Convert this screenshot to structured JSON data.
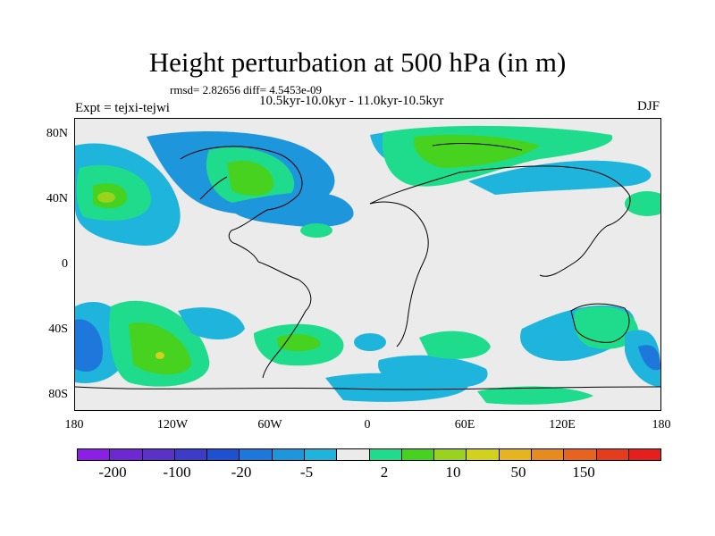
{
  "title": "Height perturbation at 500 hPa (in m)",
  "stats": "rmsd= 2.82656 diff= 4.5453e-09",
  "period": "10.5kyr-10.0kyr - 11.0kyr-10.5kyr",
  "experiment": "Expt = tejxi-tejwi",
  "season": "DJF",
  "map": {
    "projection": "cylindrical equidistant",
    "lon_range": [
      -180,
      180
    ],
    "lat_range": [
      -90,
      90
    ],
    "background_color": "#ebebeb",
    "lat_ticks": [
      "80N",
      "40N",
      "0",
      "40S",
      "80S"
    ],
    "lon_ticks": [
      "180",
      "120W",
      "60W",
      "0",
      "60E",
      "120E",
      "180"
    ],
    "features": [
      {
        "name": "north-pacific-positive",
        "level": "2 to 10",
        "lon": -170,
        "lat": 40
      },
      {
        "name": "north-america-positive",
        "level": "10 to 20",
        "lon": -75,
        "lat": 55
      },
      {
        "name": "north-atlantic-negative",
        "level": "-5 to -2",
        "lon": -40,
        "lat": 45
      },
      {
        "name": "eurasia-arctic-positive",
        "level": "2 to 10",
        "lon": 50,
        "lat": 65
      },
      {
        "name": "southeast-pacific-positive",
        "level": "2 to 10",
        "lon": -125,
        "lat": -55
      },
      {
        "name": "south-atlantic-positive",
        "level": "2 to 10",
        "lon": -45,
        "lat": -45
      },
      {
        "name": "southern-indian-positive",
        "level": "2 to 10",
        "lon": 50,
        "lat": -45
      },
      {
        "name": "australia-positive",
        "level": "2 to 10",
        "lon": 145,
        "lat": -35
      },
      {
        "name": "southwest-pacific-negative",
        "level": "-20 to -5",
        "lon": -175,
        "lat": -50
      }
    ]
  },
  "colorbar": {
    "colors": [
      "#8c1ee6",
      "#6e28d2",
      "#5a32c8",
      "#3c3cc8",
      "#1e50d2",
      "#1e78dc",
      "#1e96dc",
      "#1eb4dc",
      "#ebebeb",
      "#1edc8c",
      "#46d21e",
      "#9bd21e",
      "#d2d21e",
      "#e6b41e",
      "#e68c1e",
      "#e6641e",
      "#e63c1e",
      "#e61e1e"
    ],
    "levels": [
      "-200",
      "-100",
      "-20",
      "-5",
      "2",
      "10",
      "50",
      "150"
    ]
  }
}
